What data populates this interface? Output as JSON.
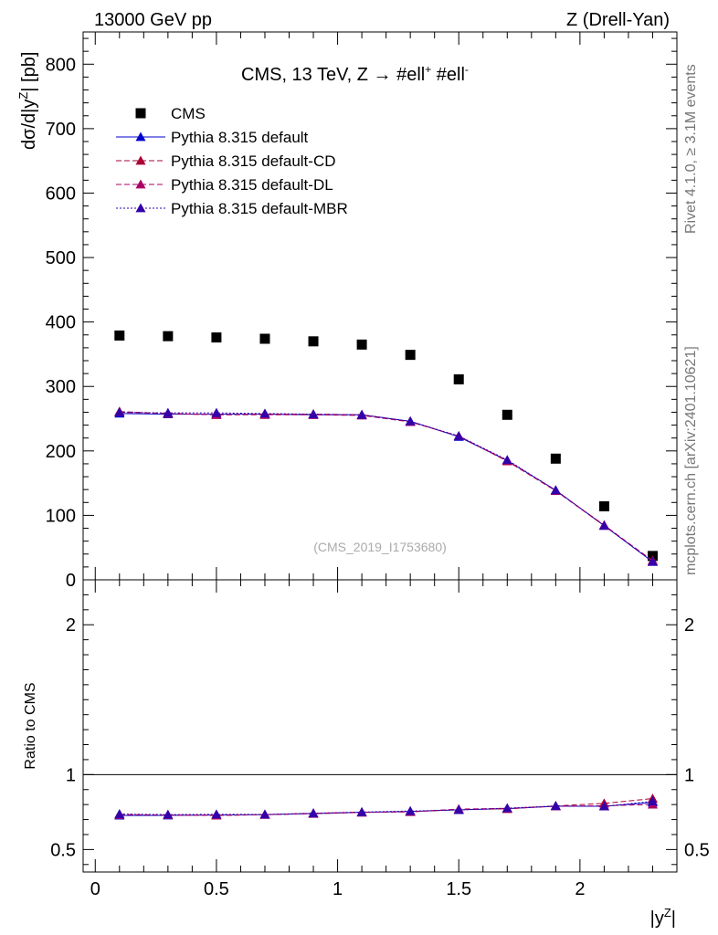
{
  "header": {
    "left": "13000 GeV pp",
    "right": "Z (Drell-Yan)"
  },
  "side_labels": {
    "rivet": "Rivet 4.1.0, ≥ 3.1M events",
    "mcplots": "mcplots.cern.ch [arXiv:2401.10621]"
  },
  "colors": {
    "cms": "#000000",
    "default": "#0000cc",
    "cd": "#aa0033",
    "dl": "#aa0066",
    "mbr": "#3300aa"
  },
  "chart_data": [
    {
      "type": "scatter",
      "panel": "main",
      "title": "CMS, 13 TeV, Z →  #ell⁺ #ell⁻",
      "title_parts": {
        "lead": "CMS, 13 TeV, Z →  #ell",
        "sup1": "+",
        "mid": " #ell",
        "sup2": "-"
      },
      "ylabel_parts": {
        "lead": "dσ/d|y",
        "sup": "Z",
        "tail": "| [pb]"
      },
      "watermark": "(CMS_2019_I1753680)",
      "xlim": [
        -0.05,
        2.4
      ],
      "ylim": [
        0,
        850
      ],
      "x_ticks": [
        0,
        0.5,
        1,
        1.5,
        2
      ],
      "y_ticks": [
        {
          "v": 0,
          "label": "0"
        },
        {
          "v": 100,
          "label": "100"
        },
        {
          "v": 200,
          "label": "200"
        },
        {
          "v": 300,
          "label": "300"
        },
        {
          "v": 400,
          "label": "400"
        },
        {
          "v": 500,
          "label": "500"
        },
        {
          "v": 600,
          "label": "600"
        },
        {
          "v": 700,
          "label": "700"
        },
        {
          "v": 800,
          "label": "800"
        }
      ],
      "x": [
        0.1,
        0.3,
        0.5,
        0.7,
        0.9,
        1.1,
        1.3,
        1.5,
        1.7,
        1.9,
        2.1,
        2.3
      ],
      "series": [
        {
          "key": "cms",
          "name": "CMS",
          "marker": "square",
          "line": "none",
          "values": [
            379,
            378,
            376,
            374,
            370,
            365,
            349,
            311,
            256,
            188,
            114,
            37
          ]
        },
        {
          "key": "default",
          "name": "Pythia 8.315 default",
          "marker": "triangle",
          "line": "solid",
          "values": [
            258,
            257,
            257,
            257,
            256,
            256,
            246,
            222,
            185,
            139,
            84,
            28
          ]
        },
        {
          "key": "cd",
          "name": "Pythia 8.315 default-CD",
          "marker": "triangle",
          "line": "dashed",
          "values": [
            261,
            258,
            256,
            257,
            257,
            256,
            245,
            223,
            184,
            138,
            84,
            30
          ]
        },
        {
          "key": "dl",
          "name": "Pythia 8.315 default-DL",
          "marker": "triangle",
          "line": "dashed",
          "values": [
            260,
            258,
            256,
            256,
            256,
            255,
            245,
            223,
            185,
            138,
            85,
            29
          ]
        },
        {
          "key": "mbr",
          "name": "Pythia 8.315 default-MBR",
          "marker": "triangle",
          "line": "dotted",
          "values": [
            260,
            259,
            259,
            258,
            257,
            256,
            246,
            223,
            186,
            139,
            84,
            28
          ]
        }
      ]
    },
    {
      "type": "line",
      "panel": "ratio",
      "ylabel": "Ratio to CMS",
      "xlabel_parts": {
        "lead": "|y",
        "sup": "Z",
        "tail": "|"
      },
      "xlim": [
        -0.05,
        2.4
      ],
      "ylim": [
        0.35,
        2.3
      ],
      "x_ticks": [
        {
          "v": 0,
          "label": "0"
        },
        {
          "v": 0.5,
          "label": "0.5"
        },
        {
          "v": 1,
          "label": "1"
        },
        {
          "v": 1.5,
          "label": "1.5"
        },
        {
          "v": 2,
          "label": "2"
        }
      ],
      "y_ticks": [
        {
          "v": 0.5,
          "label": "0.5"
        },
        {
          "v": 1,
          "label": "1"
        },
        {
          "v": 2,
          "label": "2"
        }
      ],
      "reference": 1,
      "x": [
        0.1,
        0.3,
        0.5,
        0.7,
        0.9,
        1.1,
        1.3,
        1.5,
        1.7,
        1.9,
        2.1,
        2.3
      ],
      "series": [
        {
          "key": "default",
          "name": "Pythia 8.315 default",
          "line": "solid",
          "values": [
            0.727,
            0.728,
            0.73,
            0.733,
            0.74,
            0.748,
            0.754,
            0.765,
            0.773,
            0.789,
            0.789,
            0.814
          ]
        },
        {
          "key": "cd",
          "name": "Pythia 8.315 default-CD",
          "line": "dashed",
          "values": [
            0.734,
            0.73,
            0.727,
            0.733,
            0.742,
            0.749,
            0.751,
            0.768,
            0.771,
            0.791,
            0.808,
            0.84
          ]
        },
        {
          "key": "dl",
          "name": "Pythia 8.315 default-DL",
          "line": "dashed",
          "values": [
            0.732,
            0.73,
            0.728,
            0.732,
            0.739,
            0.747,
            0.752,
            0.77,
            0.775,
            0.789,
            0.792,
            0.8
          ]
        },
        {
          "key": "mbr",
          "name": "Pythia 8.315 default-MBR",
          "line": "dotted",
          "values": [
            0.737,
            0.733,
            0.735,
            0.734,
            0.742,
            0.75,
            0.757,
            0.764,
            0.776,
            0.791,
            0.788,
            0.822
          ]
        }
      ]
    }
  ]
}
